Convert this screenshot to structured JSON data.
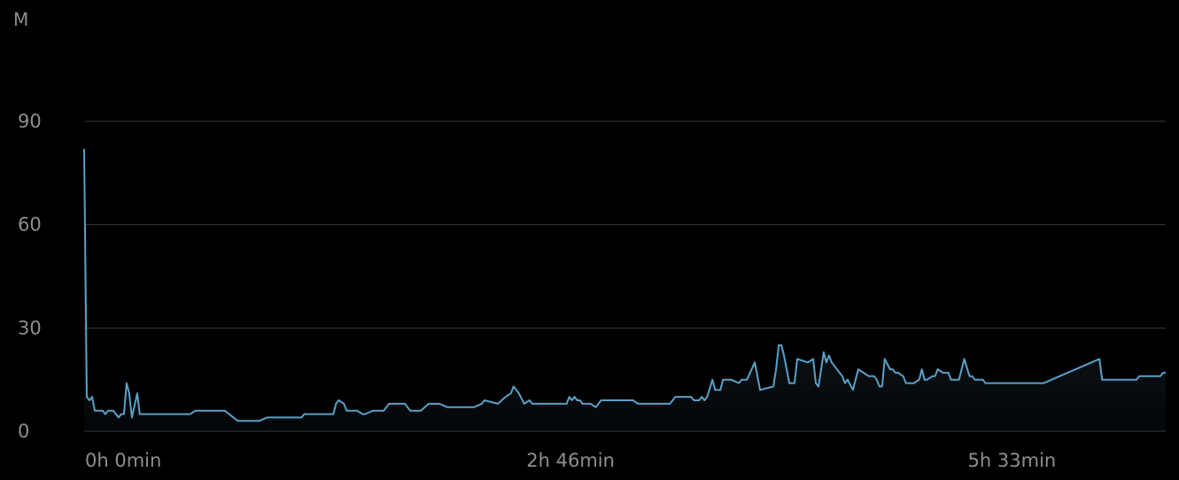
{
  "unit": "M",
  "chart_data": {
    "type": "area",
    "title": "",
    "xlabel": "",
    "ylabel": "M",
    "ylim": [
      0,
      90
    ],
    "yticks": [
      0,
      30,
      60,
      90
    ],
    "xtick_labels": [
      "0h 0min",
      "2h 46min",
      "5h 33min"
    ],
    "x_range_minutes": [
      0,
      408
    ],
    "grid": true,
    "colors": {
      "line": "#5aa0c8",
      "grid": "#3a3a3c",
      "text": "#8e8e93",
      "background": "#000000"
    },
    "series": [
      {
        "x_minutes": [
          0,
          1,
          2,
          3,
          4,
          5,
          6,
          7,
          8,
          9,
          10,
          11,
          12,
          13,
          14,
          15,
          16,
          17,
          18,
          20,
          21,
          22,
          24,
          25,
          26,
          29,
          40,
          42,
          53,
          58,
          66,
          69,
          70,
          82,
          83,
          94,
          95,
          96,
          98,
          99,
          100,
          103,
          105,
          106,
          109,
          113,
          115,
          119,
          121,
          123,
          127,
          130,
          134,
          137,
          140,
          142,
          147,
          150,
          151,
          156,
          159,
          161,
          162,
          163,
          164,
          166,
          168,
          169,
          170,
          171,
          174,
          182,
          183,
          184,
          185,
          186,
          187,
          188,
          189,
          191,
          193,
          195,
          198,
          207,
          209,
          212,
          221,
          223,
          226,
          229,
          230,
          232,
          233,
          234,
          235,
          237,
          238,
          239,
          240,
          241,
          244,
          247,
          248,
          250,
          253,
          255,
          260,
          261,
          262,
          263,
          264,
          265,
          266,
          267,
          268,
          269,
          273,
          275,
          276,
          277,
          278,
          279,
          280,
          281,
          282,
          286,
          287,
          288,
          290,
          292,
          296,
          298,
          299,
          300,
          301,
          302,
          304,
          305,
          306,
          307,
          309,
          310,
          313,
          315,
          316,
          317,
          318,
          320,
          321,
          322,
          324,
          325,
          326,
          327,
          329,
          330,
          332,
          334,
          335,
          336,
          337,
          339,
          340,
          342,
          344,
          345,
          347,
          362,
          383,
          384,
          385,
          397,
          398,
          403,
          406,
          407,
          408
        ],
        "values": [
          82,
          10,
          9,
          10,
          6,
          6,
          6,
          6,
          5,
          6,
          6,
          6,
          5,
          4,
          5,
          5,
          14,
          11,
          4,
          11,
          5,
          5,
          5,
          5,
          5,
          5,
          5,
          6,
          6,
          3,
          3,
          4,
          4,
          4,
          5,
          5,
          8,
          9,
          8,
          6,
          6,
          6,
          5,
          5,
          6,
          6,
          8,
          8,
          8,
          6,
          6,
          8,
          8,
          7,
          7,
          7,
          7,
          8,
          9,
          8,
          10,
          11,
          13,
          12,
          11,
          8,
          9,
          8,
          8,
          8,
          8,
          8,
          10,
          9,
          10,
          9,
          9,
          8,
          8,
          8,
          7,
          9,
          9,
          9,
          8,
          8,
          8,
          10,
          10,
          10,
          9,
          9,
          10,
          9,
          10,
          15,
          12,
          12,
          12,
          15,
          15,
          14,
          15,
          15,
          20,
          12,
          13,
          18,
          25,
          25,
          22,
          18,
          14,
          14,
          14,
          21,
          20,
          21,
          14,
          13,
          18,
          23,
          20,
          22,
          20,
          16,
          14,
          15,
          12,
          18,
          16,
          16,
          15,
          13,
          13,
          21,
          18,
          18,
          17,
          17,
          16,
          14,
          14,
          15,
          18,
          15,
          15,
          16,
          16,
          18,
          17,
          17,
          17,
          15,
          15,
          15,
          21,
          16,
          16,
          15,
          15,
          15,
          14,
          14,
          14,
          14,
          14,
          14,
          21,
          15,
          15,
          15,
          16,
          16,
          16,
          17,
          17
        ]
      }
    ]
  }
}
